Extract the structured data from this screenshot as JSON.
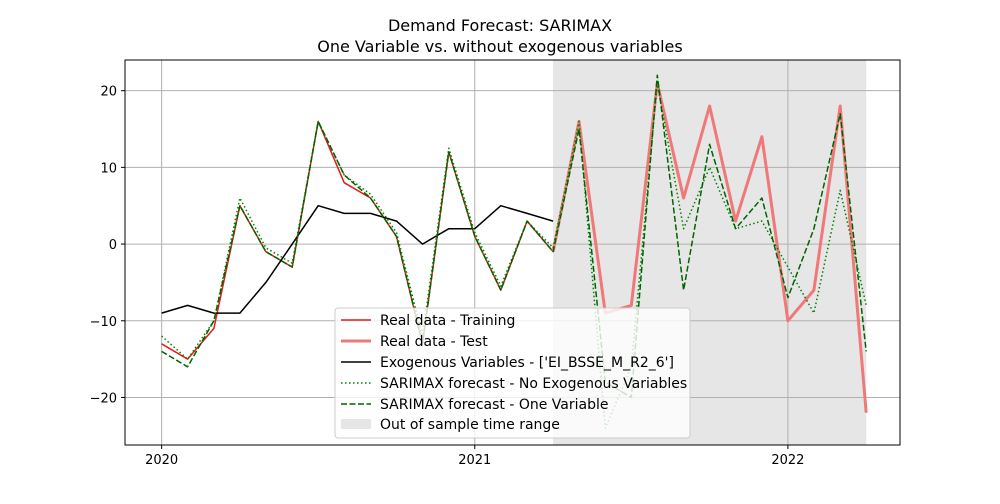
{
  "chart_data": {
    "type": "line",
    "title": "Demand Forecast: SARIMAX",
    "subtitle": "One Variable vs. without exogenous variables",
    "xlabel": "",
    "ylabel": "",
    "xlim": [
      2019.883,
      2022.358
    ],
    "ylim": [
      -26.2,
      24
    ],
    "grid": true,
    "x_ticks": [
      2020,
      2021,
      2022
    ],
    "x_tick_labels": [
      "2020",
      "2021",
      "2022"
    ],
    "y_ticks": [
      -20,
      -10,
      0,
      10,
      20
    ],
    "y_tick_labels": [
      "−20",
      "−10",
      "0",
      "10",
      "20"
    ],
    "shaded_region": {
      "label": "Out of sample time range",
      "x_start": 2021.25,
      "x_end": 2022.25,
      "color": "#e6e6e6"
    },
    "legend_position": "lower center",
    "series": [
      {
        "name": "Real data - Training",
        "color": "#e31a1c",
        "style": "solid",
        "width": 1.5,
        "x": [
          2020.0,
          2020.083,
          2020.167,
          2020.25,
          2020.333,
          2020.417,
          2020.5,
          2020.583,
          2020.667,
          2020.75,
          2020.833,
          2020.917,
          2021.0,
          2021.083,
          2021.167,
          2021.25
        ],
        "values": [
          -13,
          -15,
          -11,
          5,
          -1,
          -3,
          16,
          8,
          6,
          1,
          -13,
          12,
          1,
          -6,
          3,
          -1
        ]
      },
      {
        "name": "Real data - Test",
        "color": "#f07878",
        "style": "solid",
        "width": 3,
        "x": [
          2021.25,
          2021.333,
          2021.417,
          2021.5,
          2021.583,
          2021.667,
          2021.75,
          2021.833,
          2021.917,
          2022.0,
          2022.083,
          2022.167,
          2022.25
        ],
        "values": [
          -1,
          16,
          -9,
          -8,
          21,
          6,
          18,
          3,
          14,
          -10,
          -6,
          18,
          -22
        ]
      },
      {
        "name": "Exogenous Variables - ['EI_BSSE_M_R2_6']",
        "color": "#000000",
        "style": "solid",
        "width": 1.5,
        "x": [
          2020.0,
          2020.083,
          2020.167,
          2020.25,
          2020.333,
          2020.417,
          2020.5,
          2020.583,
          2020.667,
          2020.75,
          2020.833,
          2020.917,
          2021.0,
          2021.083,
          2021.167,
          2021.25
        ],
        "values": [
          -9,
          -8,
          -9,
          -9,
          -5,
          0,
          5,
          4,
          4,
          3,
          0,
          2,
          2,
          5,
          4,
          3
        ]
      },
      {
        "name": "SARIMAX forecast - No Exogenous Variables",
        "color": "#008000",
        "style": "dotted",
        "width": 1.5,
        "x": [
          2020.0,
          2020.083,
          2020.167,
          2020.25,
          2020.333,
          2020.417,
          2020.5,
          2020.583,
          2020.667,
          2020.75,
          2020.833,
          2020.917,
          2021.0,
          2021.083,
          2021.167,
          2021.25,
          2021.333,
          2021.417,
          2021.5,
          2021.583,
          2021.667,
          2021.75,
          2021.833,
          2021.917,
          2022.0,
          2022.083,
          2022.167,
          2022.25
        ],
        "values": [
          -12,
          -15,
          -10,
          6,
          -0.5,
          -2.5,
          16,
          9,
          6.5,
          1.5,
          -12,
          12.5,
          1.5,
          -5.5,
          3,
          -0.5,
          16,
          -24,
          -16,
          21,
          2,
          10,
          2,
          3,
          -3,
          -9,
          7,
          -8
        ]
      },
      {
        "name": "SARIMAX forecast - One Variable",
        "color": "#006400",
        "style": "dashed",
        "width": 1.5,
        "x": [
          2020.0,
          2020.083,
          2020.167,
          2020.25,
          2020.333,
          2020.417,
          2020.5,
          2020.583,
          2020.667,
          2020.75,
          2020.833,
          2020.917,
          2021.0,
          2021.083,
          2021.167,
          2021.25,
          2021.333,
          2021.417,
          2021.5,
          2021.583,
          2021.667,
          2021.75,
          2021.833,
          2021.917,
          2022.0,
          2022.083,
          2022.167,
          2022.25
        ],
        "values": [
          -14,
          -16,
          -10,
          5,
          -1,
          -3,
          16,
          9,
          6,
          1,
          -13,
          12,
          1,
          -6,
          3,
          -1,
          15,
          -18,
          -20,
          22,
          -6,
          13,
          2,
          6,
          -7,
          2,
          17,
          -14
        ]
      }
    ]
  }
}
